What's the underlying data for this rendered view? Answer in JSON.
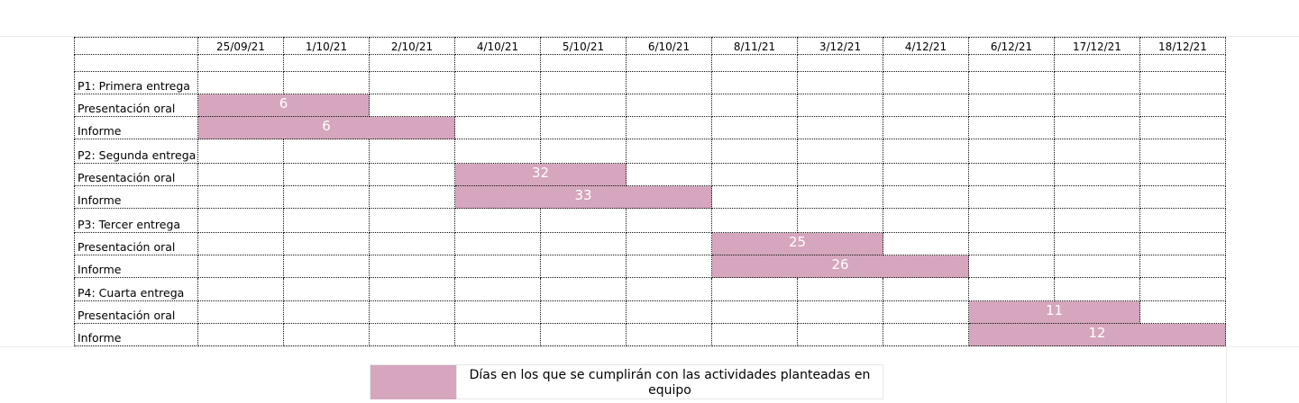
{
  "columns": [
    "25/09/21",
    "1/10/21",
    "2/10/21",
    "4/10/21",
    "5/10/21",
    "6/10/21",
    "8/11/21",
    "3/12/21",
    "4/12/21",
    "6/12/21",
    "17/12/21",
    "18/12/21"
  ],
  "rows": [
    {
      "label": "",
      "kind": "blank"
    },
    {
      "label": "P1: Primera entrega",
      "kind": "phase"
    },
    {
      "label": "Presentación oral",
      "kind": "task",
      "bar": {
        "start": 0,
        "span": 2,
        "value": "6"
      }
    },
    {
      "label": "Informe",
      "kind": "task",
      "bar": {
        "start": 0,
        "span": 3,
        "value": "6"
      }
    },
    {
      "label": "P2: Segunda entrega",
      "kind": "phase"
    },
    {
      "label": "Presentación oral",
      "kind": "task",
      "bar": {
        "start": 3,
        "span": 2,
        "value": "32"
      }
    },
    {
      "label": "Informe",
      "kind": "task",
      "bar": {
        "start": 3,
        "span": 3,
        "value": "33"
      }
    },
    {
      "label": "P3: Tercer entrega",
      "kind": "phase"
    },
    {
      "label": "Presentación oral",
      "kind": "task",
      "bar": {
        "start": 6,
        "span": 2,
        "value": "25"
      }
    },
    {
      "label": "Informe",
      "kind": "task",
      "bar": {
        "start": 6,
        "span": 3,
        "value": "26"
      }
    },
    {
      "label": "P4: Cuarta entrega",
      "kind": "phase"
    },
    {
      "label": "Presentación oral",
      "kind": "task",
      "bar": {
        "start": 9,
        "span": 2,
        "value": "11"
      }
    },
    {
      "label": "Informe",
      "kind": "task",
      "bar": {
        "start": 9,
        "span": 3,
        "value": "12"
      }
    }
  ],
  "legend": {
    "text": "Días en los que se cumplirán con las actividades planteadas en equipo",
    "color": "#d5a6bd"
  },
  "colors": {
    "bar": "#d5a6bd",
    "bar_text": "#ffffff"
  }
}
